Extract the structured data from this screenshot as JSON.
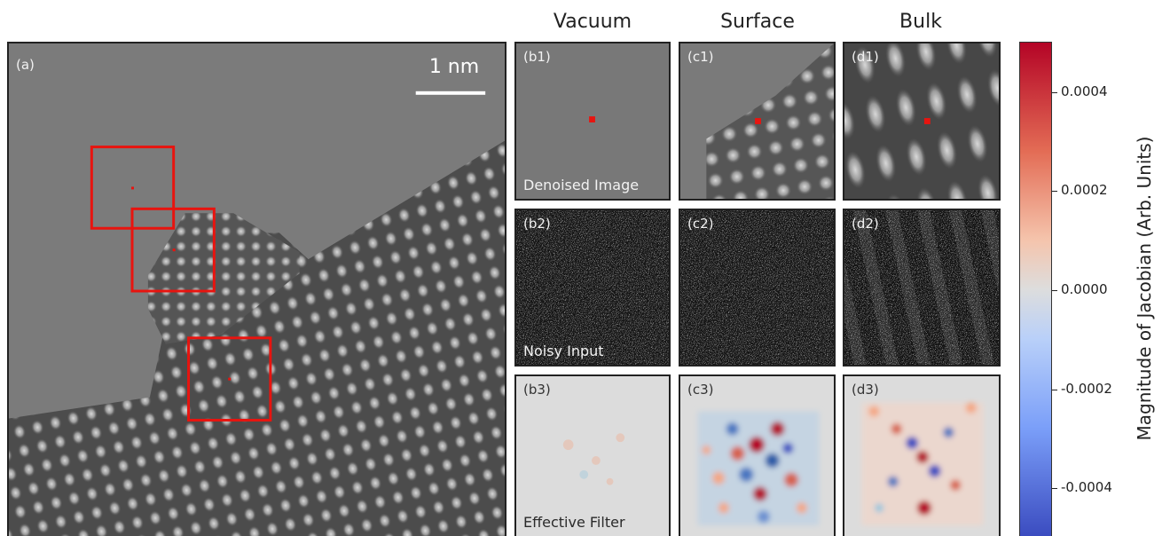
{
  "columns": [
    "Vacuum",
    "Surface",
    "Bulk"
  ],
  "main_panel": {
    "label": "(a)",
    "scale_bar": "1 nm"
  },
  "row_captions": [
    "Denoised Image",
    "Noisy Input",
    "Effective Filter"
  ],
  "panels": {
    "b1": "(b1)",
    "c1": "(c1)",
    "d1": "(d1)",
    "b2": "(b2)",
    "c2": "(c2)",
    "d2": "(d2)",
    "b3": "(b3)",
    "c3": "(c3)",
    "d3": "(d3)"
  },
  "colorbar": {
    "label": "Magnitude of Jacobian (Arb. Units)",
    "ticks": [
      "0.0004",
      "0.0002",
      "0.0000",
      "-0.0002",
      "-0.0004"
    ],
    "min": -0.0005,
    "max": 0.0005,
    "colors": {
      "low": "#3b4cc0",
      "mid": "#dddddd",
      "high": "#b40426"
    }
  },
  "highlight_color": "#e8140f"
}
